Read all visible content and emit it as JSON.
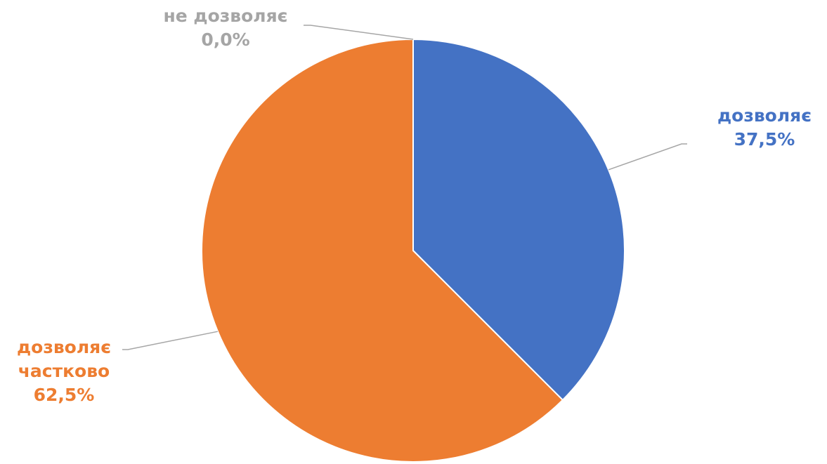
{
  "chart_data": {
    "type": "pie",
    "title": "",
    "slices": [
      {
        "label": "дозволяє",
        "value": 37.5,
        "value_label": "37,5%",
        "color": "#4472C4"
      },
      {
        "label": "дозволяє частково",
        "label_lines": [
          "дозволяє",
          "частково"
        ],
        "value": 62.5,
        "value_label": "62,5%",
        "color": "#ED7D31"
      },
      {
        "label": "не дозволяє",
        "value": 0.0,
        "value_label": "0,0%",
        "color": "#A5A5A5"
      }
    ],
    "legend": "none",
    "start_angle": "12 o'clock",
    "direction": "clockwise"
  }
}
